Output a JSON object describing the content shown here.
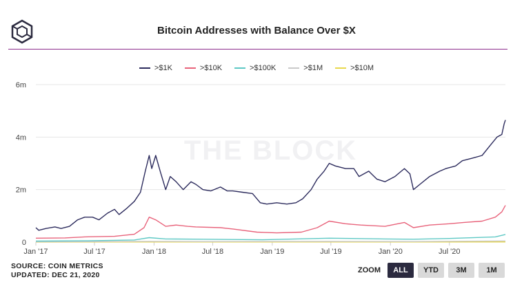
{
  "header": {
    "title": "Bitcoin Addresses with Balance Over $X"
  },
  "watermark": "THE BLOCK",
  "footer": {
    "source": "SOURCE: COIN METRICS",
    "updated": "UPDATED: DEC 21, 2020"
  },
  "zoom": {
    "label": "ZOOM",
    "buttons": [
      "ALL",
      "YTD",
      "3M",
      "1M"
    ],
    "active": "ALL"
  },
  "colors": {
    "title_rule": "#8d2c8c",
    "k1": "#2b2a5c",
    "k10": "#e8627a",
    "k100": "#5cc8c4",
    "m1": "#c9c9c9",
    "m10": "#e8d84a"
  },
  "chart_data": {
    "type": "line",
    "title": "Bitcoin Addresses with Balance Over $X",
    "xlabel": "",
    "ylabel": "",
    "x_ticks": [
      "Jan '17",
      "Jul '17",
      "Jan '18",
      "Jul '18",
      "Jan '19",
      "Jul '19",
      "Jan '20",
      "Jul '20"
    ],
    "x_range": [
      "2017-01-01",
      "2020-12-21"
    ],
    "y_ticks": [
      "0",
      "2m",
      "4m",
      "6m"
    ],
    "y_range": [
      0,
      6000000
    ],
    "grid": true,
    "legend_position": "top-center",
    "series": [
      {
        "name": ">$1K",
        "color": "#2b2a5c",
        "points": [
          [
            "2017-01-01",
            550000
          ],
          [
            "2017-01-10",
            450000
          ],
          [
            "2017-02-01",
            520000
          ],
          [
            "2017-03-01",
            580000
          ],
          [
            "2017-03-20",
            520000
          ],
          [
            "2017-04-15",
            600000
          ],
          [
            "2017-05-10",
            850000
          ],
          [
            "2017-06-01",
            950000
          ],
          [
            "2017-06-25",
            950000
          ],
          [
            "2017-07-15",
            850000
          ],
          [
            "2017-08-10",
            1100000
          ],
          [
            "2017-09-01",
            1250000
          ],
          [
            "2017-09-15",
            1050000
          ],
          [
            "2017-10-10",
            1300000
          ],
          [
            "2017-11-01",
            1550000
          ],
          [
            "2017-11-20",
            1900000
          ],
          [
            "2017-12-05",
            2700000
          ],
          [
            "2017-12-17",
            3300000
          ],
          [
            "2017-12-25",
            2800000
          ],
          [
            "2018-01-06",
            3300000
          ],
          [
            "2018-01-20",
            2700000
          ],
          [
            "2018-02-06",
            2000000
          ],
          [
            "2018-02-20",
            2500000
          ],
          [
            "2018-03-10",
            2300000
          ],
          [
            "2018-04-01",
            2000000
          ],
          [
            "2018-04-25",
            2300000
          ],
          [
            "2018-05-10",
            2200000
          ],
          [
            "2018-06-01",
            2000000
          ],
          [
            "2018-06-25",
            1950000
          ],
          [
            "2018-07-25",
            2100000
          ],
          [
            "2018-08-15",
            1950000
          ],
          [
            "2018-09-01",
            1950000
          ],
          [
            "2018-10-01",
            1900000
          ],
          [
            "2018-11-01",
            1850000
          ],
          [
            "2018-11-25",
            1500000
          ],
          [
            "2018-12-15",
            1450000
          ],
          [
            "2019-01-15",
            1500000
          ],
          [
            "2019-02-15",
            1450000
          ],
          [
            "2019-03-15",
            1500000
          ],
          [
            "2019-04-05",
            1650000
          ],
          [
            "2019-05-01",
            2000000
          ],
          [
            "2019-05-20",
            2400000
          ],
          [
            "2019-06-10",
            2700000
          ],
          [
            "2019-06-26",
            3000000
          ],
          [
            "2019-07-15",
            2900000
          ],
          [
            "2019-08-15",
            2800000
          ],
          [
            "2019-09-10",
            2800000
          ],
          [
            "2019-09-26",
            2500000
          ],
          [
            "2019-10-26",
            2700000
          ],
          [
            "2019-11-20",
            2400000
          ],
          [
            "2019-12-15",
            2300000
          ],
          [
            "2020-01-15",
            2500000
          ],
          [
            "2020-02-13",
            2800000
          ],
          [
            "2020-03-01",
            2600000
          ],
          [
            "2020-03-12",
            2000000
          ],
          [
            "2020-04-01",
            2200000
          ],
          [
            "2020-05-01",
            2500000
          ],
          [
            "2020-06-01",
            2700000
          ],
          [
            "2020-06-20",
            2800000
          ],
          [
            "2020-07-20",
            2900000
          ],
          [
            "2020-08-10",
            3100000
          ],
          [
            "2020-09-10",
            3200000
          ],
          [
            "2020-10-10",
            3300000
          ],
          [
            "2020-11-05",
            3700000
          ],
          [
            "2020-11-25",
            4000000
          ],
          [
            "2020-12-10",
            4100000
          ],
          [
            "2020-12-17",
            4500000
          ],
          [
            "2020-12-21",
            4650000
          ]
        ]
      },
      {
        "name": ">$10K",
        "color": "#e8627a",
        "points": [
          [
            "2017-01-01",
            150000
          ],
          [
            "2017-04-01",
            160000
          ],
          [
            "2017-06-01",
            200000
          ],
          [
            "2017-09-01",
            220000
          ],
          [
            "2017-11-01",
            300000
          ],
          [
            "2017-12-01",
            550000
          ],
          [
            "2017-12-17",
            950000
          ],
          [
            "2018-01-06",
            850000
          ],
          [
            "2018-02-06",
            600000
          ],
          [
            "2018-03-10",
            650000
          ],
          [
            "2018-04-15",
            600000
          ],
          [
            "2018-05-10",
            580000
          ],
          [
            "2018-07-25",
            550000
          ],
          [
            "2018-09-01",
            500000
          ],
          [
            "2018-11-15",
            380000
          ],
          [
            "2019-01-15",
            350000
          ],
          [
            "2019-04-01",
            380000
          ],
          [
            "2019-05-20",
            550000
          ],
          [
            "2019-06-26",
            800000
          ],
          [
            "2019-08-15",
            700000
          ],
          [
            "2019-10-01",
            650000
          ],
          [
            "2019-12-15",
            600000
          ],
          [
            "2020-02-13",
            750000
          ],
          [
            "2020-03-12",
            550000
          ],
          [
            "2020-05-01",
            650000
          ],
          [
            "2020-07-01",
            700000
          ],
          [
            "2020-08-15",
            750000
          ],
          [
            "2020-10-10",
            800000
          ],
          [
            "2020-11-20",
            950000
          ],
          [
            "2020-12-10",
            1150000
          ],
          [
            "2020-12-21",
            1400000
          ]
        ]
      },
      {
        "name": ">$100K",
        "color": "#5cc8c4",
        "points": [
          [
            "2017-01-01",
            40000
          ],
          [
            "2017-06-01",
            50000
          ],
          [
            "2017-11-01",
            80000
          ],
          [
            "2017-12-17",
            170000
          ],
          [
            "2018-02-06",
            120000
          ],
          [
            "2018-06-01",
            110000
          ],
          [
            "2018-12-01",
            90000
          ],
          [
            "2019-06-26",
            150000
          ],
          [
            "2019-12-15",
            120000
          ],
          [
            "2020-03-12",
            110000
          ],
          [
            "2020-07-01",
            140000
          ],
          [
            "2020-11-20",
            200000
          ],
          [
            "2020-12-21",
            290000
          ]
        ]
      },
      {
        "name": ">$1M",
        "color": "#c9c9c9",
        "points": [
          [
            "2017-01-01",
            10000
          ],
          [
            "2017-12-17",
            30000
          ],
          [
            "2018-06-01",
            20000
          ],
          [
            "2019-06-26",
            25000
          ],
          [
            "2020-03-12",
            20000
          ],
          [
            "2020-12-21",
            45000
          ]
        ]
      },
      {
        "name": ">$10M",
        "color": "#e8d84a",
        "points": [
          [
            "2017-01-01",
            2000
          ],
          [
            "2017-12-17",
            5000
          ],
          [
            "2019-06-26",
            4000
          ],
          [
            "2020-12-21",
            8000
          ]
        ]
      }
    ]
  }
}
